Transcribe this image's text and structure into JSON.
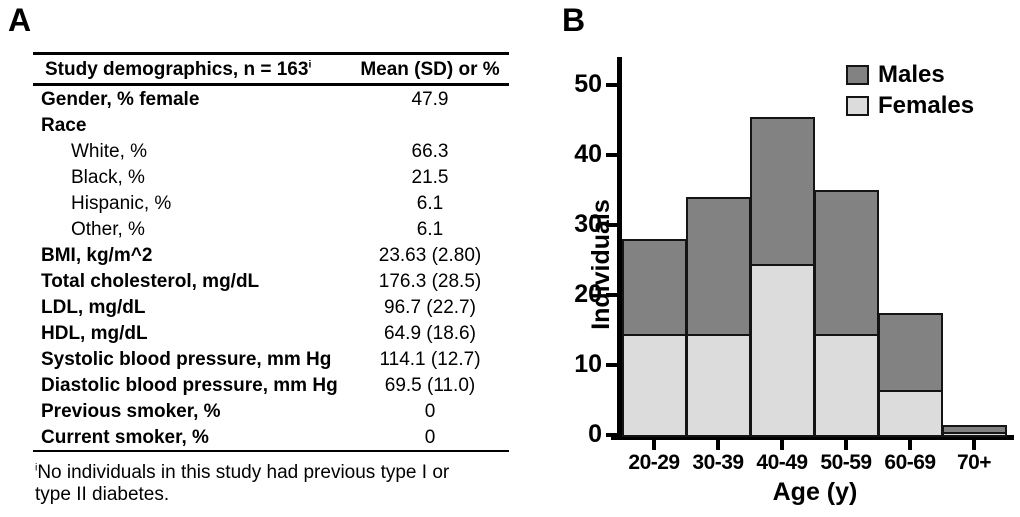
{
  "panels": {
    "a": "A",
    "b": "B"
  },
  "table": {
    "header": [
      "Study demographics, n = 163",
      "Mean (SD) or %"
    ],
    "header_superscript": "i",
    "rows": [
      {
        "label": "Gender, % female",
        "value": "47.9",
        "bold": true,
        "indent": false
      },
      {
        "label": "Race",
        "value": "",
        "bold": true,
        "indent": false
      },
      {
        "label": "White, %",
        "value": "66.3",
        "bold": false,
        "indent": true
      },
      {
        "label": "Black, %",
        "value": "21.5",
        "bold": false,
        "indent": true
      },
      {
        "label": "Hispanic, %",
        "value": "6.1",
        "bold": false,
        "indent": true
      },
      {
        "label": "Other, %",
        "value": "6.1",
        "bold": false,
        "indent": true
      },
      {
        "label": "BMI, kg/m^2",
        "value": "23.63 (2.80)",
        "bold": true,
        "indent": false
      },
      {
        "label": "Total cholesterol, mg/dL",
        "value": "176.3 (28.5)",
        "bold": true,
        "indent": false
      },
      {
        "label": "LDL, mg/dL",
        "value": "96.7 (22.7)",
        "bold": true,
        "indent": false
      },
      {
        "label": "HDL, mg/dL",
        "value": "64.9 (18.6)",
        "bold": true,
        "indent": false
      },
      {
        "label": "Systolic blood pressure, mm Hg",
        "value": "114.1 (12.7)",
        "bold": true,
        "indent": false
      },
      {
        "label": "Diastolic blood pressure, mm Hg",
        "value": "69.5 (11.0)",
        "bold": true,
        "indent": false
      },
      {
        "label": "Previous smoker, %",
        "value": "0",
        "bold": true,
        "indent": false
      },
      {
        "label": "Current smoker, %",
        "value": "0",
        "bold": true,
        "indent": false
      }
    ],
    "footnote_superscript": "i",
    "footnote_lines": [
      "No individuals in this study had previous type I or",
      "type II diabetes."
    ]
  },
  "chart_data": {
    "type": "bar",
    "stacked": true,
    "categories": [
      "20-29",
      "30-39",
      "40-49",
      "50-59",
      "60-69",
      "70+"
    ],
    "series": [
      {
        "name": "Males",
        "color": "#828282",
        "values": [
          13.5,
          19.5,
          21.0,
          20.5,
          11.0,
          1.0
        ]
      },
      {
        "name": "Females",
        "color": "#dcdcdc",
        "values": [
          14.5,
          14.5,
          24.5,
          14.5,
          6.5,
          0.5
        ]
      }
    ],
    "totals": [
      28,
      34,
      45.5,
      35,
      17.5,
      1.5
    ],
    "title": "",
    "xlabel": "Age (y)",
    "ylabel": "Individuals",
    "ylim": [
      0,
      52
    ],
    "yticks": [
      0,
      10,
      20,
      30,
      40,
      50
    ],
    "grid": false,
    "legend_position": "top-right",
    "bar_border_color": "#141414"
  }
}
